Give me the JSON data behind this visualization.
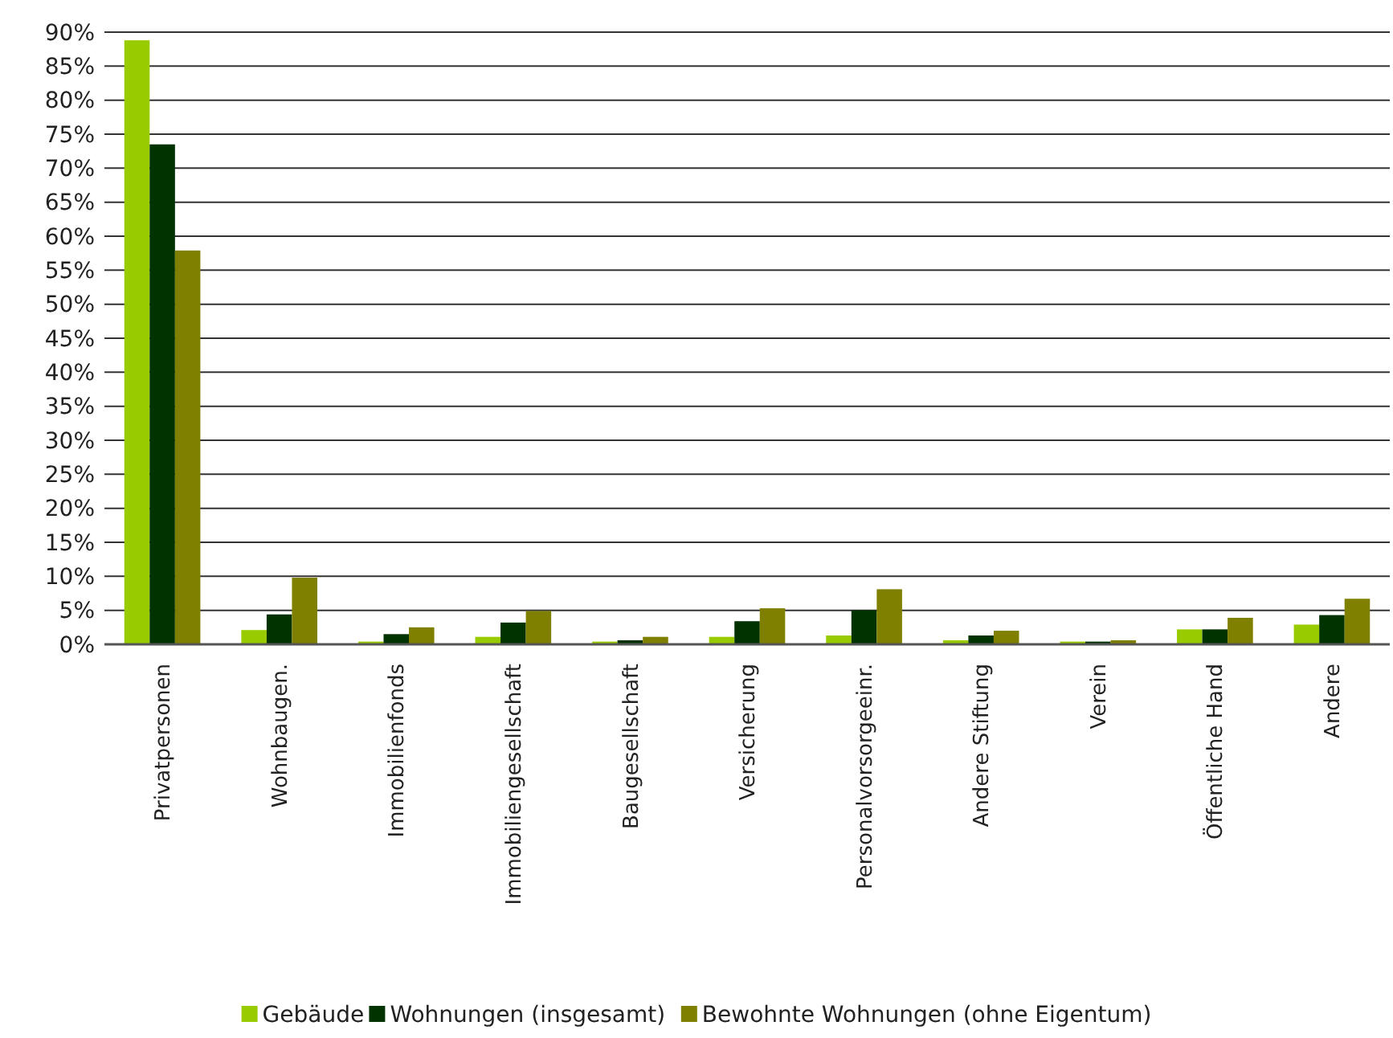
{
  "chart_data": {
    "type": "bar",
    "categories": [
      "Privatpersonen",
      "Wohnbaugen.",
      "Immobilienfonds",
      "Immobiliengesellschaft",
      "Baugesellschaft",
      "Versicherung",
      "Personalvorsorgeeinr.",
      "Andere Stiftung",
      "Verein",
      "Öffentliche Hand",
      "Andere"
    ],
    "series": [
      {
        "name": "Gebäude",
        "color": "#99cc00",
        "values": [
          88.8,
          2.1,
          0.4,
          1.1,
          0.4,
          1.1,
          1.3,
          0.6,
          0.4,
          2.2,
          2.9
        ]
      },
      {
        "name": "Wohnungen (insgesamt)",
        "color": "#003300",
        "values": [
          73.5,
          4.4,
          1.5,
          3.2,
          0.6,
          3.4,
          5.0,
          1.3,
          0.4,
          2.2,
          4.3
        ]
      },
      {
        "name": "Bewohnte Wohnungen (ohne Eigentum)",
        "color": "#808000",
        "values": [
          57.9,
          9.8,
          2.5,
          4.9,
          1.1,
          5.3,
          8.1,
          2.0,
          0.6,
          3.9,
          6.7
        ]
      }
    ],
    "ylim": [
      0,
      90
    ],
    "yticks": [
      {
        "value": 0,
        "label": "0%"
      },
      {
        "value": 5,
        "label": "5%"
      },
      {
        "value": 10,
        "label": "10%"
      },
      {
        "value": 15,
        "label": "15%"
      },
      {
        "value": 20,
        "label": "20%"
      },
      {
        "value": 25,
        "label": "25%"
      },
      {
        "value": 30,
        "label": "30%"
      },
      {
        "value": 35,
        "label": "35%"
      },
      {
        "value": 40,
        "label": "40%"
      },
      {
        "value": 45,
        "label": "45%"
      },
      {
        "value": 50,
        "label": "50%"
      },
      {
        "value": 55,
        "label": "55%"
      },
      {
        "value": 60,
        "label": "60%"
      },
      {
        "value": 65,
        "label": "65%"
      },
      {
        "value": 70,
        "label": "70%"
      },
      {
        "value": 75,
        "label": "75%"
      },
      {
        "value": 80,
        "label": "80%"
      },
      {
        "value": 85,
        "label": "85%"
      },
      {
        "value": 90,
        "label": "90%"
      }
    ],
    "grid": "y",
    "legend": "bottom"
  }
}
